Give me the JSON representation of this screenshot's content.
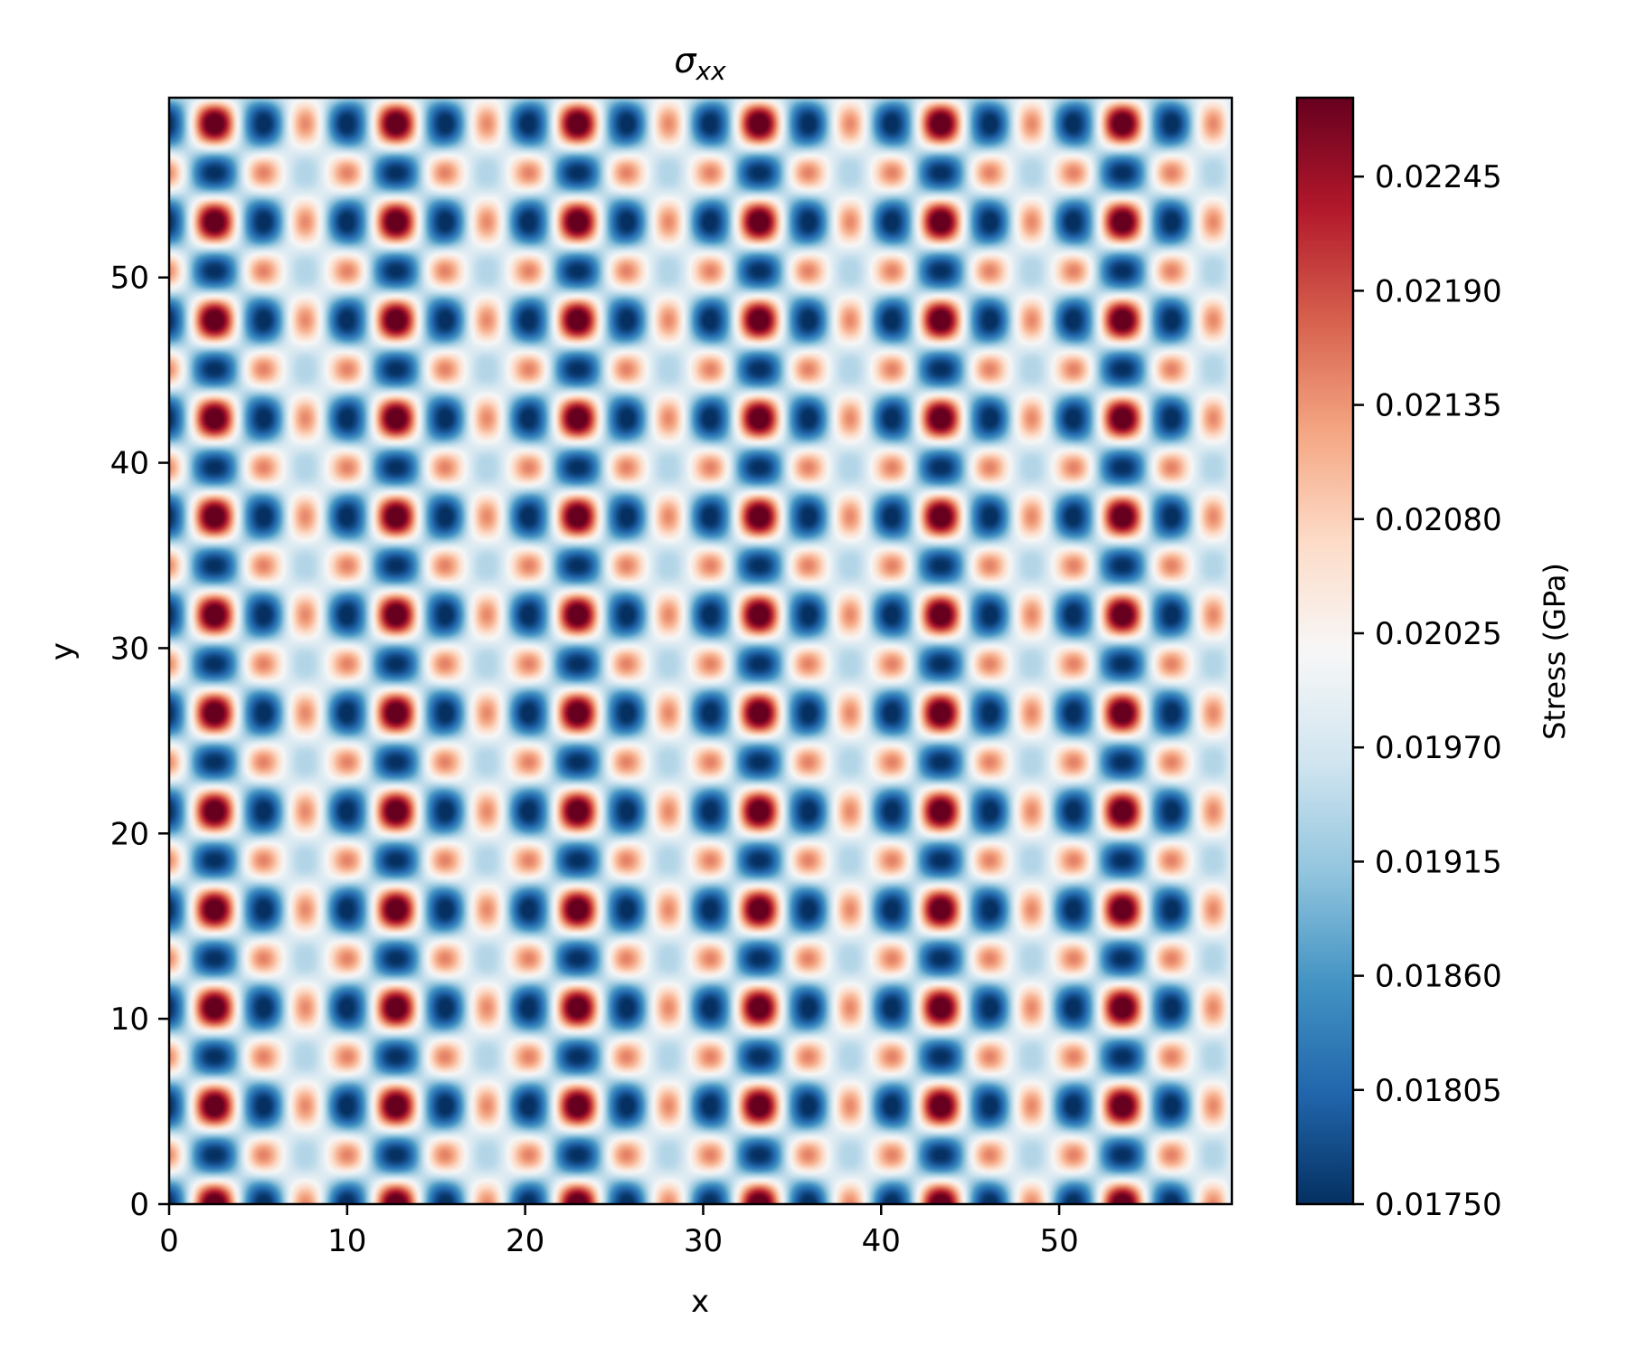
{
  "chart_data": {
    "type": "heatmap",
    "title": "σ",
    "title_subscript": "xx",
    "xlabel": "x",
    "ylabel": "y",
    "xlim": [
      0,
      59.7
    ],
    "ylim": [
      0,
      59.7
    ],
    "x_ticks": [
      0,
      10,
      20,
      30,
      40,
      50
    ],
    "y_ticks": [
      0,
      10,
      20,
      30,
      40,
      50
    ],
    "grid": false,
    "colormap": "RdBu_r",
    "colormap_stops": [
      "#053061",
      "#2166ac",
      "#4393c3",
      "#92c5de",
      "#d1e5f0",
      "#f7f7f7",
      "#fddbc7",
      "#f4a582",
      "#d6604d",
      "#b2182b",
      "#67001f"
    ],
    "colorbar": {
      "label": "Stress (GPa)",
      "min": 0.0175,
      "max": 0.02283,
      "ticks": [
        "0.01750",
        "0.01805",
        "0.01860",
        "0.01915",
        "0.01970",
        "0.02025",
        "0.02080",
        "0.02135",
        "0.02190",
        "0.02245"
      ]
    },
    "pattern": {
      "description": "periodic hexagonal lattice of stress maxima",
      "period_x": 5.1,
      "period_y": 5.3,
      "peak_x_offset": 2.55,
      "peak_y_offset": 0.0
    }
  }
}
